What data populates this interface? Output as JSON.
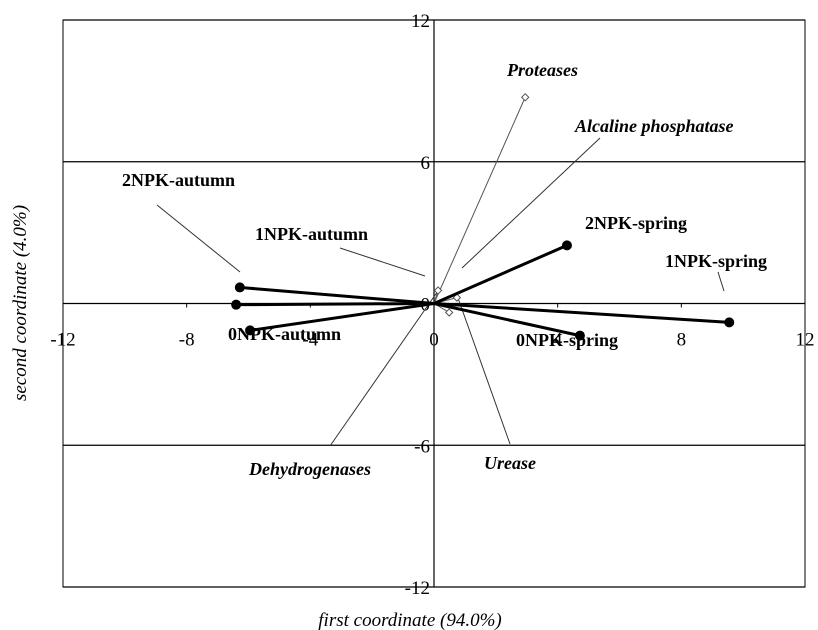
{
  "chart_data": {
    "type": "scatter",
    "xlabel": "first coordinate (94.0%)",
    "ylabel": "second coordinate (4.0%)",
    "xlim": [
      -12,
      12
    ],
    "ylim": [
      -12,
      12
    ],
    "xticks": [
      -12,
      -8,
      -4,
      0,
      4,
      8,
      12
    ],
    "yticks": [
      12,
      6,
      0,
      -6,
      -12
    ],
    "grid": true,
    "color": "#000000",
    "points": [
      {
        "label": "2NPK-autumn",
        "x": -6.28,
        "y": 0.68
      },
      {
        "label": "1NPK-autumn",
        "x": -6.4,
        "y": -0.05
      },
      {
        "label": "0NPK-autumn",
        "x": -5.95,
        "y": -1.14
      },
      {
        "label": "2NPK-spring",
        "x": 4.3,
        "y": 2.46
      },
      {
        "label": "1NPK-spring",
        "x": 9.55,
        "y": -0.8
      },
      {
        "label": "0NPK-spring",
        "x": 4.72,
        "y": -1.36
      }
    ],
    "vectors": [
      {
        "label": "Proteases",
        "x": 2.95,
        "y": 8.73
      },
      {
        "label": "Alcaline phosphatase",
        "x": 0.13,
        "y": 0.55
      },
      {
        "label": "Urease",
        "x": 0.74,
        "y": 0.25
      },
      {
        "label": "Dehydrogenases",
        "x": 0.49,
        "y": -0.38
      }
    ]
  }
}
